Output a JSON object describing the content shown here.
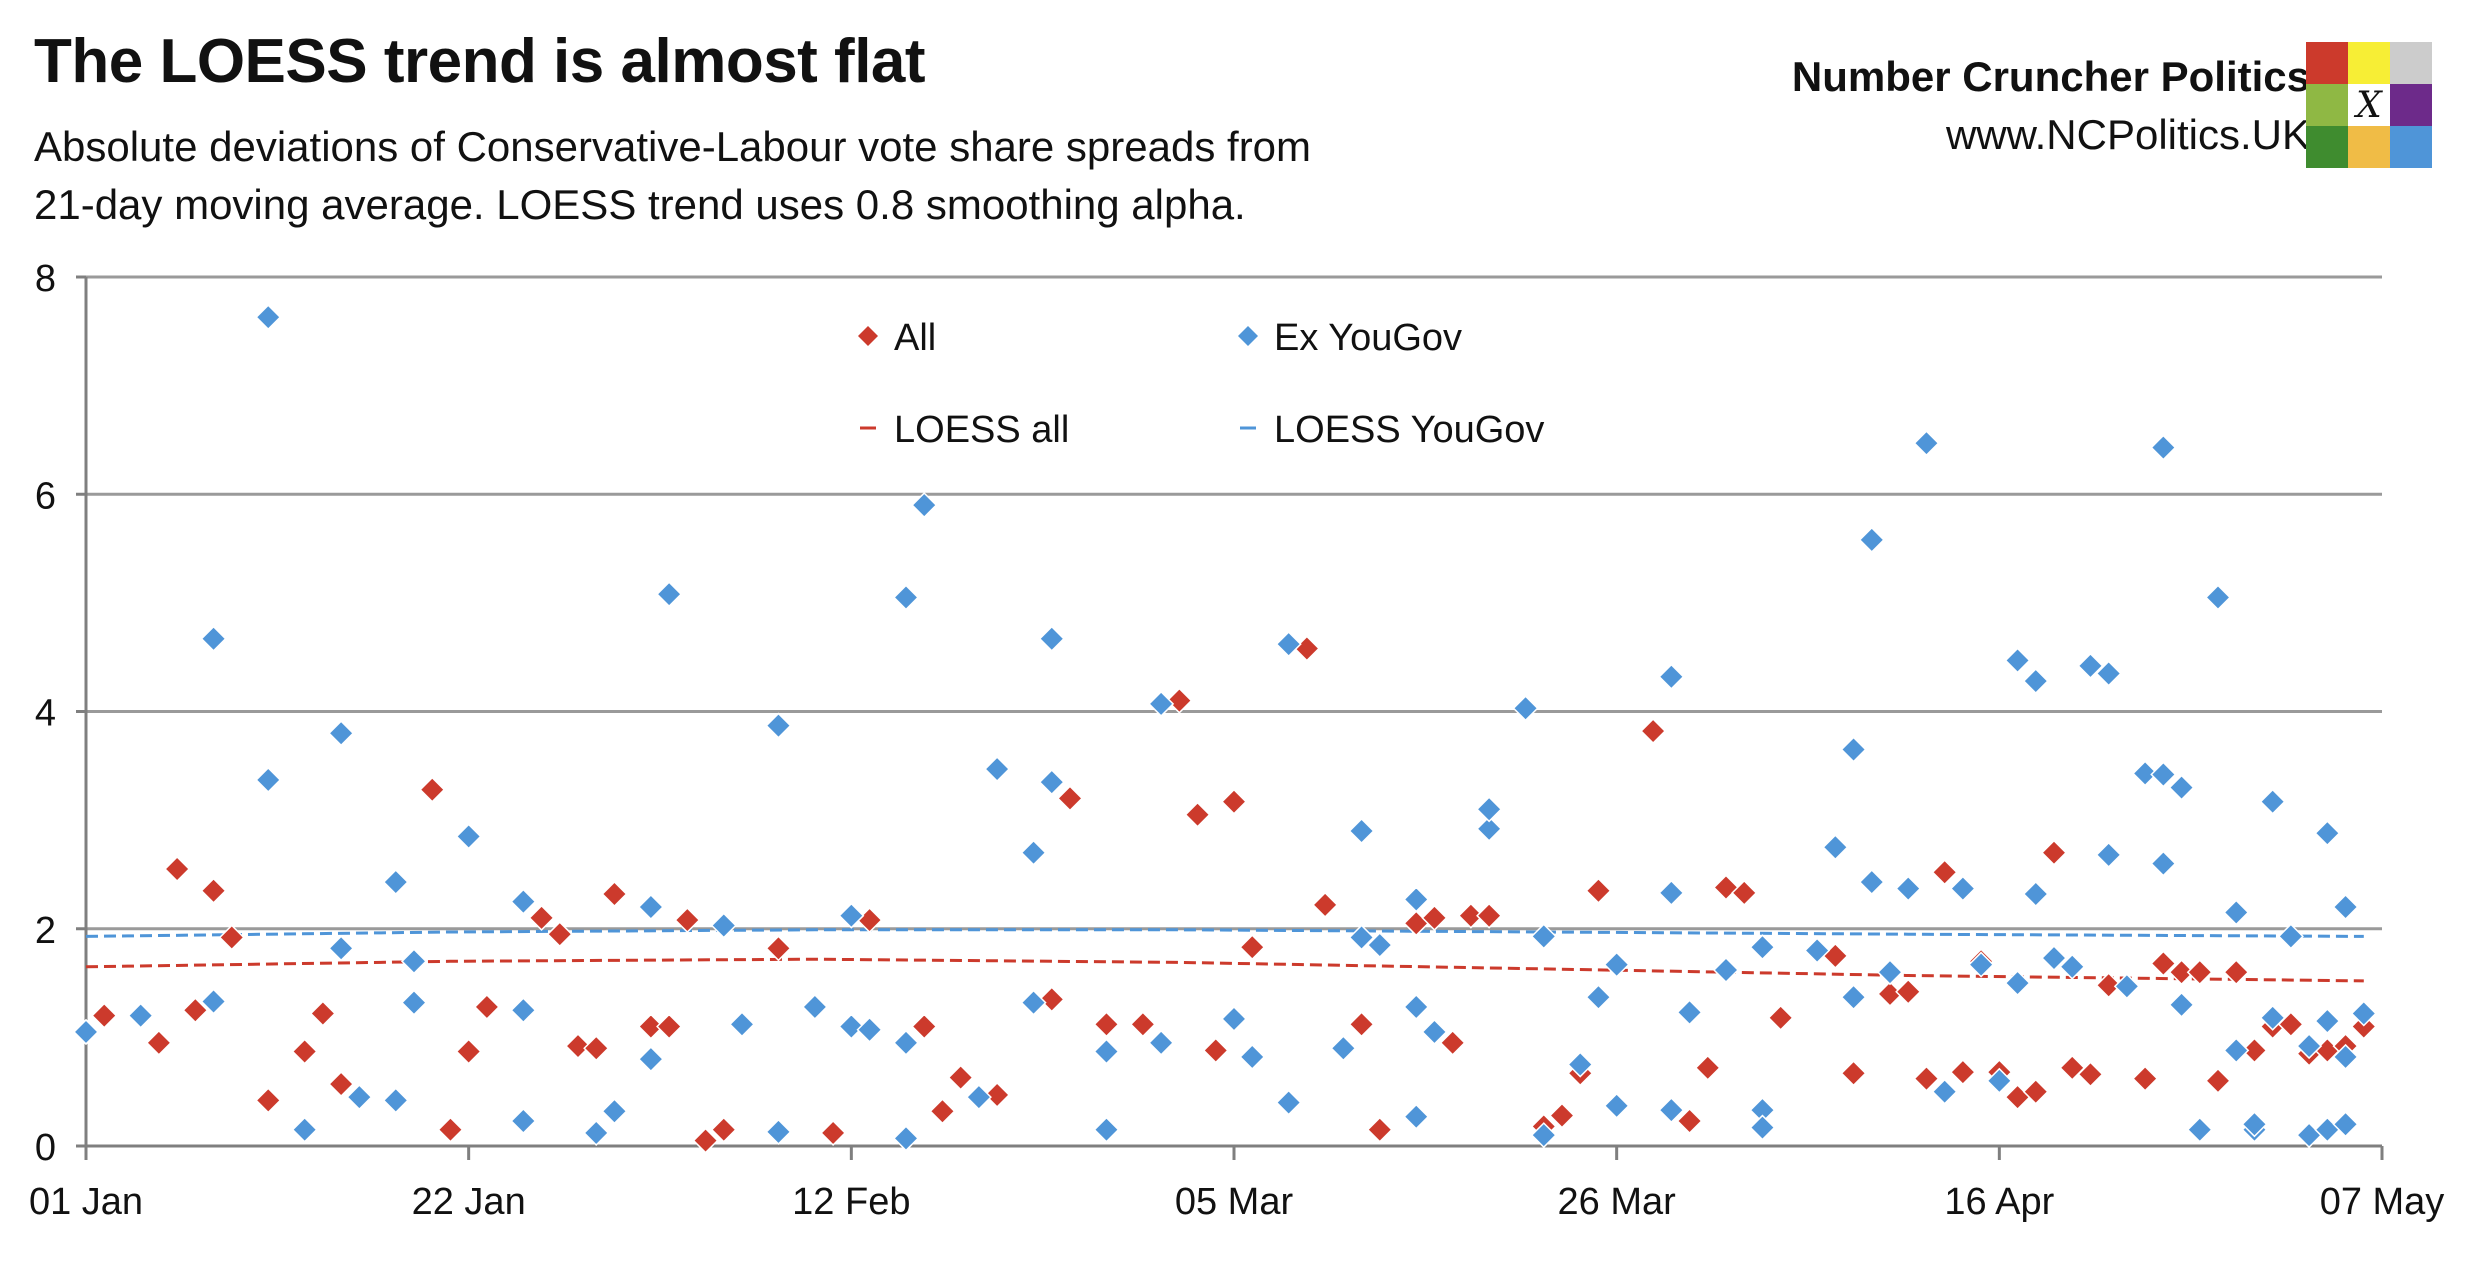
{
  "header": {
    "title": "The LOESS trend is almost flat",
    "subtitle_line1": "Absolute deviations of Conservative-Labour vote share spreads from",
    "subtitle_line2": "21-day moving average. LOESS trend uses 0.8 smoothing alpha.",
    "brand_name": "Number Cruncher Politics",
    "brand_url": "www.NCPolitics.UK"
  },
  "logo": {
    "mark": "X",
    "colors": [
      "#cc3a2c",
      "#f7ee35",
      "#cccccc",
      "#8fb844",
      "#ffffff",
      "#6d2a8a",
      "#3f8c2f",
      "#f0bc46",
      "#4f95d8"
    ]
  },
  "colors": {
    "all": "#cc3a2c",
    "ex_yougov": "#4f95d8",
    "loess_all": "#cc3a2c",
    "loess_yougov": "#4f95d8",
    "grid": "#9a9a9a",
    "axis": "#7f7f7f"
  },
  "chart_data": {
    "type": "scatter",
    "title": "The LOESS trend is almost flat",
    "xlabel": "",
    "ylabel": "",
    "x_unit": "days since 01 Jan",
    "xlim": [
      0,
      126
    ],
    "ylim": [
      0,
      8
    ],
    "yticks": [
      "0",
      "2",
      "4",
      "6",
      "8"
    ],
    "xticks": [
      {
        "day": 0,
        "label": "01 Jan"
      },
      {
        "day": 21,
        "label": "22 Jan"
      },
      {
        "day": 42,
        "label": "12 Feb"
      },
      {
        "day": 63,
        "label": "05 Mar"
      },
      {
        "day": 84,
        "label": "26 Mar"
      },
      {
        "day": 105,
        "label": "16 Apr"
      },
      {
        "day": 126,
        "label": "07 May"
      }
    ],
    "grid": true,
    "legend": {
      "placement": "top-center",
      "entries": [
        {
          "label": "All",
          "marker": "diamond",
          "color": "#cc3a2c"
        },
        {
          "label": "Ex YouGov",
          "marker": "diamond",
          "color": "#4f95d8"
        },
        {
          "label": "LOESS all",
          "marker": "dash",
          "color": "#cc3a2c"
        },
        {
          "label": "LOESS YouGov",
          "marker": "dash",
          "color": "#4f95d8"
        }
      ]
    },
    "series": [
      {
        "name": "All",
        "kind": "scatter",
        "points": [
          [
            0,
            1.05
          ],
          [
            1,
            1.2
          ],
          [
            4,
            0.95
          ],
          [
            5,
            2.55
          ],
          [
            6,
            1.25
          ],
          [
            7,
            2.35
          ],
          [
            8,
            1.92
          ],
          [
            10,
            0.42
          ],
          [
            12,
            0.87
          ],
          [
            13,
            1.22
          ],
          [
            14,
            0.57
          ],
          [
            19,
            3.28
          ],
          [
            20,
            0.15
          ],
          [
            21,
            0.87
          ],
          [
            22,
            1.28
          ],
          [
            25,
            2.1
          ],
          [
            26,
            1.95
          ],
          [
            27,
            0.92
          ],
          [
            28,
            0.9
          ],
          [
            29,
            2.32
          ],
          [
            31,
            1.1
          ],
          [
            32,
            1.1
          ],
          [
            33,
            2.08
          ],
          [
            34,
            0.05
          ],
          [
            35,
            0.15
          ],
          [
            38,
            1.82
          ],
          [
            41,
            0.12
          ],
          [
            43,
            2.08
          ],
          [
            46,
            1.1
          ],
          [
            47,
            0.32
          ],
          [
            48,
            0.63
          ],
          [
            50,
            0.47
          ],
          [
            53,
            1.35
          ],
          [
            54,
            3.2
          ],
          [
            56,
            1.12
          ],
          [
            58,
            1.12
          ],
          [
            60,
            4.1
          ],
          [
            61,
            3.05
          ],
          [
            62,
            0.88
          ],
          [
            63,
            3.17
          ],
          [
            64,
            1.83
          ],
          [
            67,
            4.58
          ],
          [
            68,
            2.22
          ],
          [
            70,
            1.12
          ],
          [
            71,
            0.15
          ],
          [
            73,
            2.05
          ],
          [
            74,
            2.1
          ],
          [
            75,
            0.95
          ],
          [
            76,
            2.12
          ],
          [
            77,
            2.12
          ],
          [
            80,
            0.18
          ],
          [
            81,
            0.28
          ],
          [
            82,
            0.67
          ],
          [
            83,
            2.35
          ],
          [
            86,
            3.82
          ],
          [
            88,
            0.23
          ],
          [
            89,
            0.72
          ],
          [
            90,
            2.38
          ],
          [
            91,
            2.33
          ],
          [
            93,
            1.18
          ],
          [
            96,
            1.75
          ],
          [
            97,
            0.67
          ],
          [
            99,
            1.4
          ],
          [
            100,
            1.42
          ],
          [
            101,
            0.62
          ],
          [
            102,
            2.52
          ],
          [
            103,
            0.68
          ],
          [
            104,
            1.7
          ],
          [
            105,
            0.68
          ],
          [
            106,
            0.45
          ],
          [
            107,
            0.5
          ],
          [
            108,
            2.7
          ],
          [
            109,
            0.72
          ],
          [
            110,
            0.66
          ],
          [
            111,
            1.48
          ],
          [
            113,
            0.62
          ],
          [
            114,
            1.68
          ],
          [
            115,
            1.6
          ],
          [
            116,
            1.6
          ],
          [
            117,
            0.6
          ],
          [
            118,
            1.6
          ],
          [
            119,
            0.88
          ],
          [
            120,
            1.1
          ],
          [
            121,
            1.12
          ],
          [
            122,
            0.85
          ],
          [
            123,
            0.88
          ],
          [
            124,
            0.92
          ],
          [
            125,
            1.1
          ]
        ]
      },
      {
        "name": "Ex YouGov",
        "kind": "scatter",
        "points": [
          [
            0,
            1.05
          ],
          [
            3,
            1.2
          ],
          [
            7,
            4.67
          ],
          [
            7,
            1.33
          ],
          [
            10,
            3.37
          ],
          [
            10,
            7.63
          ],
          [
            12,
            0.15
          ],
          [
            14,
            3.8
          ],
          [
            14,
            1.82
          ],
          [
            15,
            0.45
          ],
          [
            17,
            0.42
          ],
          [
            17,
            2.43
          ],
          [
            18,
            1.32
          ],
          [
            18,
            1.7
          ],
          [
            21,
            2.85
          ],
          [
            24,
            2.25
          ],
          [
            24,
            1.25
          ],
          [
            24,
            0.23
          ],
          [
            28,
            0.12
          ],
          [
            29,
            0.32
          ],
          [
            31,
            2.2
          ],
          [
            31,
            0.8
          ],
          [
            32,
            5.08
          ],
          [
            35,
            2.03
          ],
          [
            36,
            1.12
          ],
          [
            38,
            0.13
          ],
          [
            38,
            3.87
          ],
          [
            40,
            1.28
          ],
          [
            42,
            2.12
          ],
          [
            42,
            1.1
          ],
          [
            43,
            1.07
          ],
          [
            45,
            5.05
          ],
          [
            45,
            0.95
          ],
          [
            45,
            0.07
          ],
          [
            46,
            5.9
          ],
          [
            49,
            0.45
          ],
          [
            50,
            3.47
          ],
          [
            52,
            2.7
          ],
          [
            52,
            1.32
          ],
          [
            53,
            4.67
          ],
          [
            53,
            3.35
          ],
          [
            56,
            0.87
          ],
          [
            56,
            0.15
          ],
          [
            59,
            0.95
          ],
          [
            59,
            4.07
          ],
          [
            63,
            1.17
          ],
          [
            64,
            0.82
          ],
          [
            66,
            0.4
          ],
          [
            66,
            4.62
          ],
          [
            69,
            0.9
          ],
          [
            70,
            2.9
          ],
          [
            70,
            1.92
          ],
          [
            71,
            1.85
          ],
          [
            73,
            1.28
          ],
          [
            73,
            2.27
          ],
          [
            73,
            0.27
          ],
          [
            74,
            1.05
          ],
          [
            77,
            2.92
          ],
          [
            77,
            3.1
          ],
          [
            79,
            4.03
          ],
          [
            80,
            1.93
          ],
          [
            80,
            0.1
          ],
          [
            82,
            0.75
          ],
          [
            83,
            1.37
          ],
          [
            84,
            1.67
          ],
          [
            84,
            0.37
          ],
          [
            87,
            4.32
          ],
          [
            87,
            2.33
          ],
          [
            87,
            0.33
          ],
          [
            88,
            1.23
          ],
          [
            90,
            1.62
          ],
          [
            92,
            0.33
          ],
          [
            92,
            1.83
          ],
          [
            92,
            0.17
          ],
          [
            95,
            1.8
          ],
          [
            96,
            2.75
          ],
          [
            97,
            3.65
          ],
          [
            97,
            1.37
          ],
          [
            98,
            5.58
          ],
          [
            98,
            2.43
          ],
          [
            99,
            1.6
          ],
          [
            100,
            2.37
          ],
          [
            101,
            6.47
          ],
          [
            102,
            0.5
          ],
          [
            103,
            2.37
          ],
          [
            104,
            1.67
          ],
          [
            105,
            0.6
          ],
          [
            106,
            4.47
          ],
          [
            106,
            1.5
          ],
          [
            107,
            2.32
          ],
          [
            107,
            4.28
          ],
          [
            108,
            1.73
          ],
          [
            109,
            1.65
          ],
          [
            110,
            4.42
          ],
          [
            111,
            4.35
          ],
          [
            111,
            2.68
          ],
          [
            112,
            1.47
          ],
          [
            113,
            3.43
          ],
          [
            114,
            3.42
          ],
          [
            114,
            2.6
          ],
          [
            114,
            6.43
          ],
          [
            115,
            3.3
          ],
          [
            115,
            1.3
          ],
          [
            116,
            0.15
          ],
          [
            117,
            5.05
          ],
          [
            118,
            2.15
          ],
          [
            118,
            0.88
          ],
          [
            119,
            0.15
          ],
          [
            119,
            0.2
          ],
          [
            120,
            1.18
          ],
          [
            120,
            3.17
          ],
          [
            121,
            1.93
          ],
          [
            122,
            0.1
          ],
          [
            122,
            0.92
          ],
          [
            123,
            0.15
          ],
          [
            123,
            2.88
          ],
          [
            123,
            1.15
          ],
          [
            124,
            0.82
          ],
          [
            124,
            0.2
          ],
          [
            124,
            2.2
          ],
          [
            125,
            1.22
          ]
        ]
      },
      {
        "name": "LOESS all",
        "kind": "line",
        "style": "dashed",
        "points": [
          [
            0,
            1.65
          ],
          [
            20,
            1.7
          ],
          [
            40,
            1.72
          ],
          [
            60,
            1.69
          ],
          [
            80,
            1.63
          ],
          [
            100,
            1.57
          ],
          [
            125,
            1.52
          ]
        ]
      },
      {
        "name": "LOESS YouGov",
        "kind": "line",
        "style": "dashed",
        "points": [
          [
            0,
            1.93
          ],
          [
            20,
            1.97
          ],
          [
            40,
            1.99
          ],
          [
            60,
            1.99
          ],
          [
            80,
            1.97
          ],
          [
            100,
            1.95
          ],
          [
            125,
            1.93
          ]
        ]
      }
    ]
  }
}
